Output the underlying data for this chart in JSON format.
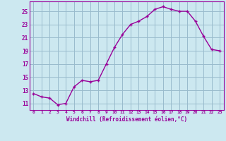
{
  "x": [
    0,
    1,
    2,
    3,
    4,
    5,
    6,
    7,
    8,
    9,
    10,
    11,
    12,
    13,
    14,
    15,
    16,
    17,
    18,
    19,
    20,
    21,
    22,
    23
  ],
  "y": [
    12.5,
    12.0,
    11.8,
    10.8,
    11.0,
    13.5,
    14.5,
    14.3,
    14.5,
    17.0,
    19.5,
    21.5,
    23.0,
    23.5,
    24.2,
    25.3,
    25.7,
    25.3,
    25.0,
    25.0,
    23.5,
    21.2,
    19.2,
    19.0
  ],
  "line_color": "#990099",
  "marker": "+",
  "marker_size": 3.5,
  "marker_lw": 1.0,
  "bg_color": "#cce8f0",
  "grid_color": "#99bbcc",
  "xlabel": "Windchill (Refroidissement éolien,°C)",
  "xlabel_color": "#990099",
  "ylabel_ticks": [
    11,
    13,
    15,
    17,
    19,
    21,
    23,
    25
  ],
  "xtick_labels": [
    "0",
    "1",
    "2",
    "3",
    "4",
    "5",
    "6",
    "7",
    "8",
    "9",
    "10",
    "11",
    "12",
    "13",
    "14",
    "15",
    "16",
    "17",
    "18",
    "19",
    "20",
    "21",
    "22",
    "23"
  ],
  "ylim": [
    10.0,
    26.5
  ],
  "xlim": [
    -0.5,
    23.5
  ],
  "tick_color": "#990099",
  "axis_color": "#990099",
  "line_width": 1.0
}
